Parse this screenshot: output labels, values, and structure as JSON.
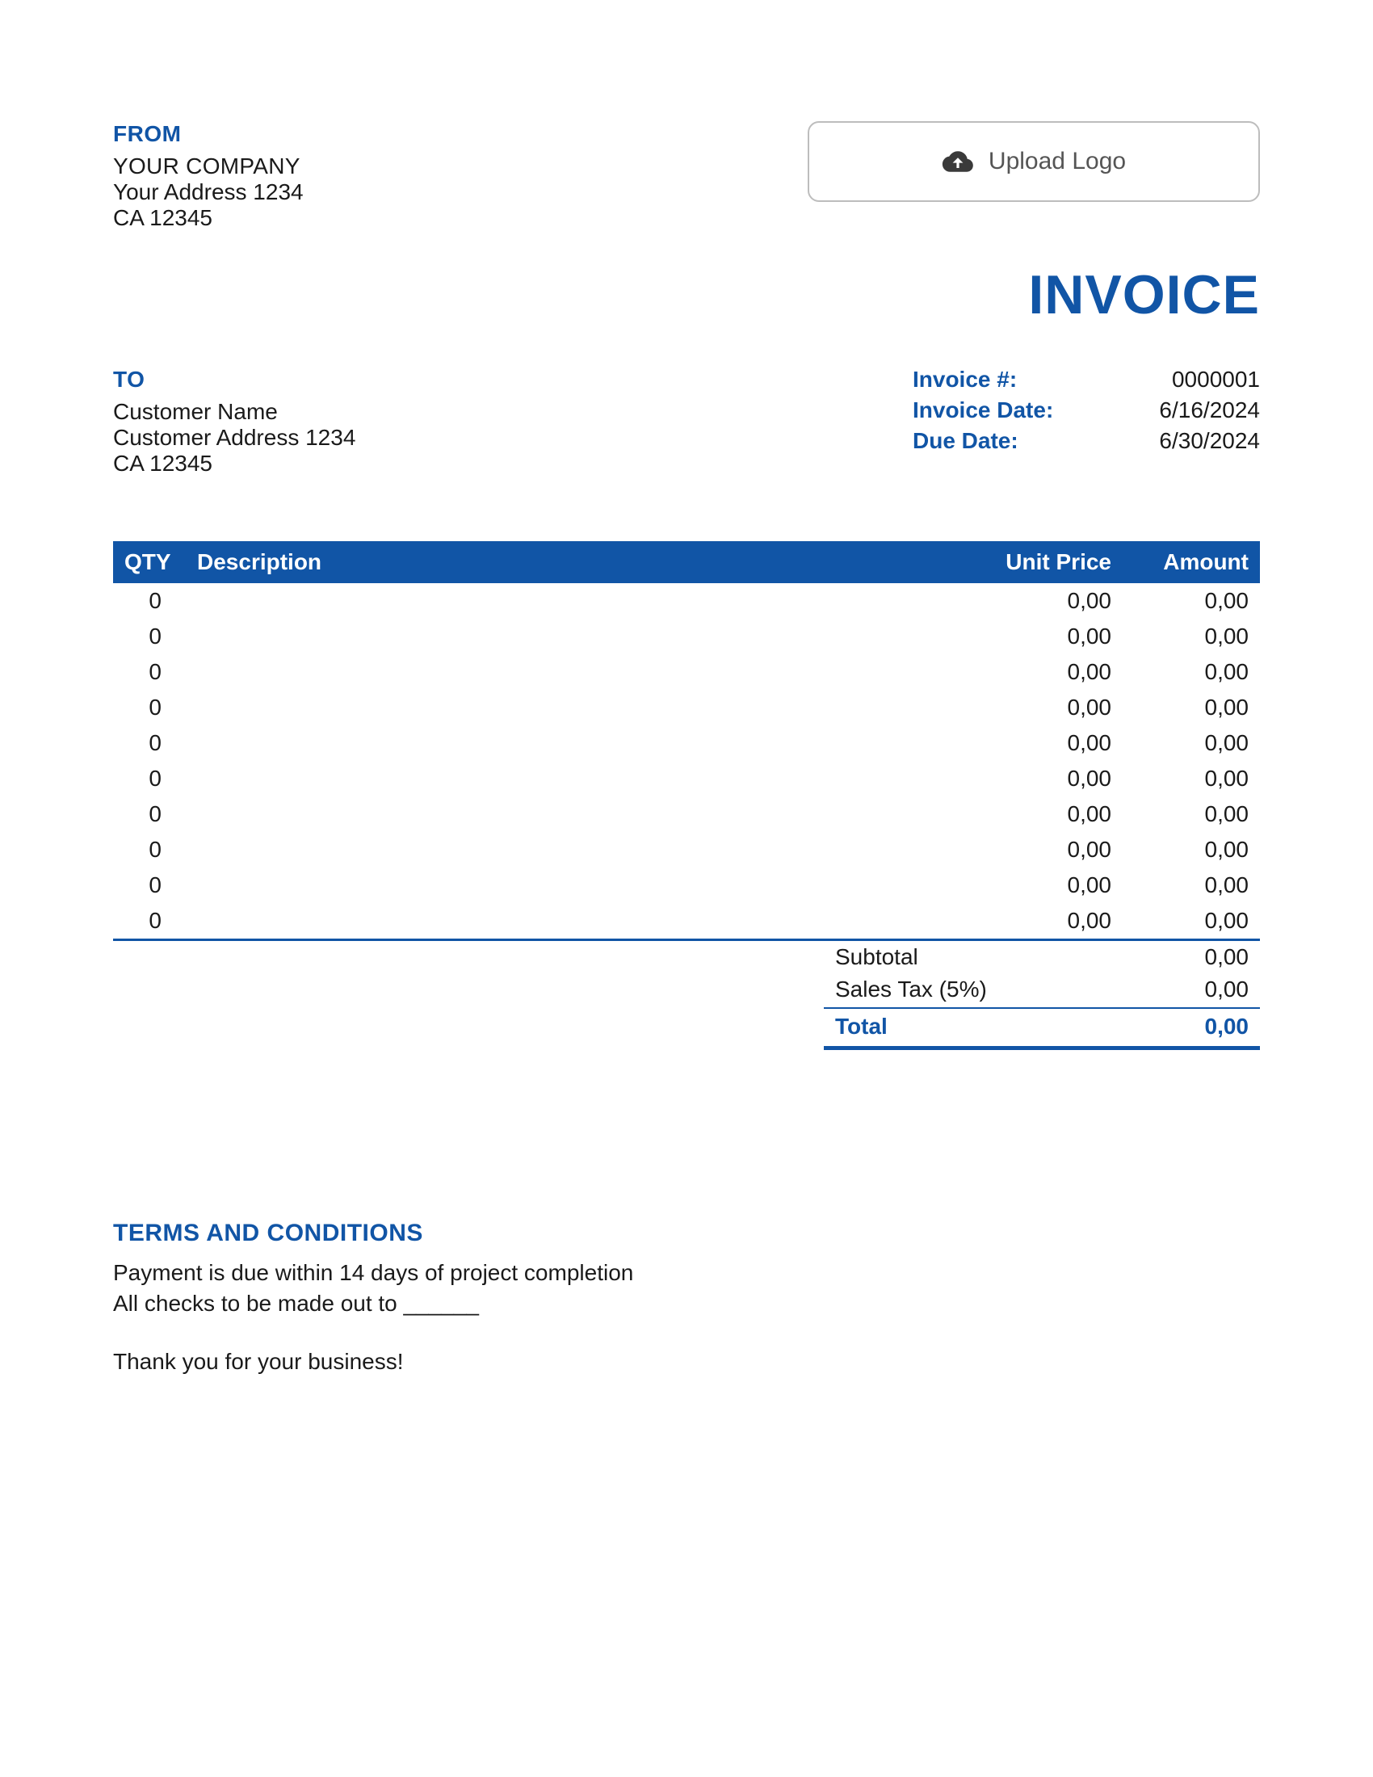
{
  "colors": {
    "accent": "#1155a6",
    "text": "#1a1a1a",
    "background": "#ffffff",
    "upload_border": "#bdbdbd",
    "upload_icon": "#3a3a3a",
    "upload_text": "#555555"
  },
  "from": {
    "label": "FROM",
    "company": "YOUR COMPANY",
    "address": "Your Address 1234",
    "region": "CA 12345"
  },
  "upload": {
    "label": "Upload Logo"
  },
  "title": "INVOICE",
  "to": {
    "label": "TO",
    "name": "Customer Name",
    "address": "Customer Address 1234",
    "region": "CA 12345"
  },
  "meta": {
    "invoice_no_label": "Invoice #:",
    "invoice_no": "0000001",
    "invoice_date_label": "Invoice Date:",
    "invoice_date": "6/16/2024",
    "due_date_label": "Due Date:",
    "due_date": "6/30/2024"
  },
  "table": {
    "columns": {
      "qty": "QTY",
      "desc": "Description",
      "unit": "Unit Price",
      "amt": "Amount"
    },
    "header_bg": "#1155a6",
    "header_fg": "#ffffff",
    "border_color": "#1155a6",
    "rows": [
      {
        "qty": "0",
        "desc": "",
        "unit": "0,00",
        "amt": "0,00"
      },
      {
        "qty": "0",
        "desc": "",
        "unit": "0,00",
        "amt": "0,00"
      },
      {
        "qty": "0",
        "desc": "",
        "unit": "0,00",
        "amt": "0,00"
      },
      {
        "qty": "0",
        "desc": "",
        "unit": "0,00",
        "amt": "0,00"
      },
      {
        "qty": "0",
        "desc": "",
        "unit": "0,00",
        "amt": "0,00"
      },
      {
        "qty": "0",
        "desc": "",
        "unit": "0,00",
        "amt": "0,00"
      },
      {
        "qty": "0",
        "desc": "",
        "unit": "0,00",
        "amt": "0,00"
      },
      {
        "qty": "0",
        "desc": "",
        "unit": "0,00",
        "amt": "0,00"
      },
      {
        "qty": "0",
        "desc": "",
        "unit": "0,00",
        "amt": "0,00"
      },
      {
        "qty": "0",
        "desc": "",
        "unit": "0,00",
        "amt": "0,00"
      }
    ]
  },
  "totals": {
    "subtotal_label": "Subtotal",
    "subtotal": "0,00",
    "tax_label": "Sales Tax (5%)",
    "tax": "0,00",
    "total_label": "Total",
    "total": "0,00"
  },
  "terms": {
    "label": "TERMS AND CONDITIONS",
    "line1": "Payment is due within 14 days of project completion",
    "line2": "All checks to be made out to ______",
    "thanks": "Thank you for your business!"
  }
}
